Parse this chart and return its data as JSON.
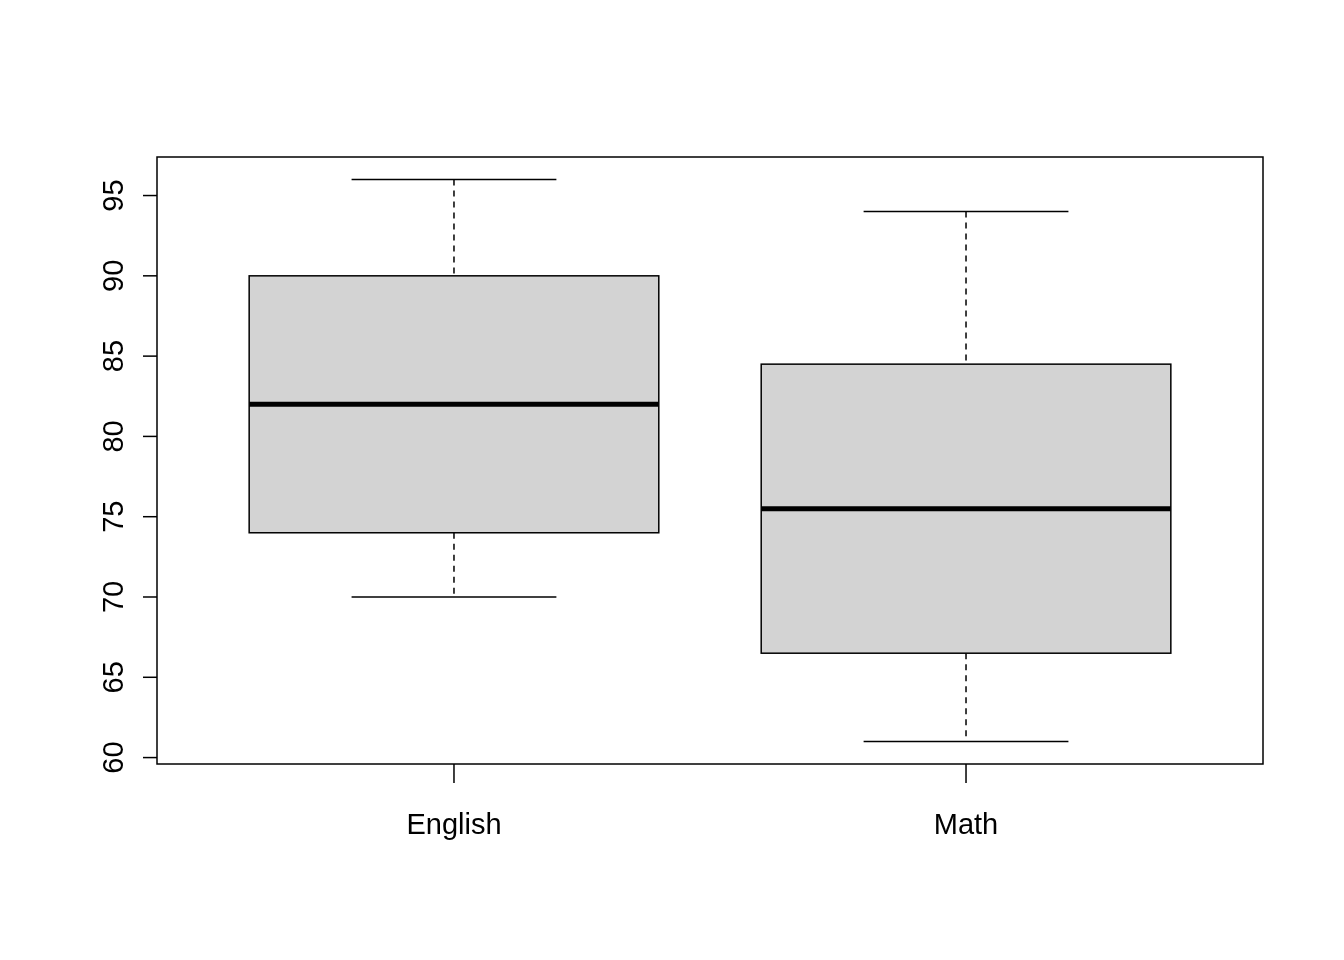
{
  "chart_data": {
    "type": "box",
    "categories": [
      "English",
      "Math"
    ],
    "boxes": [
      {
        "low": 70,
        "q1": 74,
        "median": 82,
        "q3": 90,
        "high": 96
      },
      {
        "low": 61,
        "q1": 66.5,
        "median": 75.5,
        "q3": 84.5,
        "high": 94
      }
    ],
    "color": "#d3d3d3",
    "ylim": [
      59.6,
      97.4
    ],
    "yticks": [
      60,
      65,
      70,
      75,
      80,
      85,
      90,
      95
    ]
  }
}
